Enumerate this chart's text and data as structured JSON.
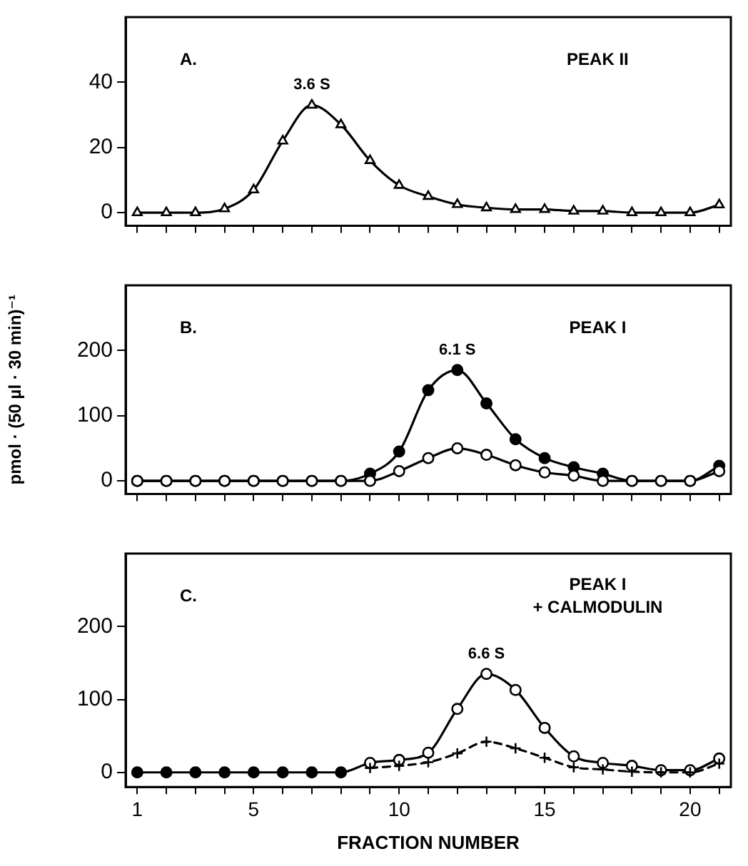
{
  "chart_data": [
    {
      "type": "line",
      "x": [
        1,
        2,
        3,
        4,
        5,
        6,
        7,
        8,
        9,
        10,
        11,
        12,
        13,
        14,
        15,
        16,
        17,
        18,
        19,
        20,
        21
      ],
      "series": [
        {
          "color": "#000000",
          "marker": "triangle",
          "colors": [
            "#ffffff",
            "#ffffff",
            "#ffffff",
            "#ffffff",
            "#ffffff",
            "#ffffff",
            "#ffffff",
            "#ffffff",
            "#ffffff",
            "#ffffff",
            "#ffffff",
            "#ffffff",
            "#ffffff",
            "#ffffff",
            "#ffffff",
            "#ffffff",
            "#ffffff",
            "#ffffff",
            "#ffffff",
            "#ffffff",
            "#ffffff"
          ],
          "values": [
            0,
            0,
            0,
            1.2,
            7,
            22,
            33,
            27,
            16,
            8.4,
            5,
            2.5,
            1.5,
            1,
            1,
            0.5,
            0.5,
            0,
            0,
            0,
            2.4
          ]
        }
      ],
      "annotations": [
        "A.",
        "PEAK II",
        {
          "text": "3.6 S",
          "x": 7,
          "y": 33
        }
      ],
      "xlim": [
        0.6,
        21.4
      ],
      "ylim": [
        -4,
        60
      ],
      "xticks": [
        1,
        {
          "value": 2,
          "label": null
        },
        {
          "value": 3,
          "label": null
        },
        {
          "value": 4,
          "label": null
        },
        5,
        {
          "value": 6,
          "label": null
        },
        {
          "value": 7,
          "label": null
        },
        {
          "value": 8,
          "label": null
        },
        {
          "value": 9,
          "label": null
        },
        10,
        {
          "value": 11,
          "label": null
        },
        {
          "value": 12,
          "label": null
        },
        {
          "value": 13,
          "label": null
        },
        {
          "value": 14,
          "label": null
        },
        15,
        {
          "value": 16,
          "label": null
        },
        {
          "value": 17,
          "label": null
        },
        {
          "value": 18,
          "label": null
        },
        {
          "value": 19,
          "label": null
        },
        20,
        {
          "value": 21,
          "label": null
        }
      ],
      "yticks": [
        0,
        20,
        40
      ],
      "tick_labels": "y",
      "line_style": "solid"
    },
    {
      "type": "line",
      "x": [
        1,
        2,
        3,
        4,
        5,
        6,
        7,
        8,
        9,
        10,
        11,
        12,
        13,
        14,
        15,
        16,
        17,
        18,
        19,
        20,
        21
      ],
      "ylabel": "pmol · (50 µl · 30 min)⁻¹",
      "series": [
        {
          "color": "#000000",
          "marker": "circle",
          "colors": [
            "#ffffff",
            "#ffffff",
            "#ffffff",
            "#ffffff",
            "#ffffff",
            "#ffffff",
            "#ffffff",
            "#ffffff",
            "#ffffff",
            "#ffffff",
            "#ffffff",
            "#ffffff",
            "#ffffff",
            "#ffffff",
            "#ffffff",
            "#ffffff",
            "#ffffff",
            "#ffffff",
            "#ffffff",
            "#ffffff",
            "#ffffff"
          ],
          "values": [
            0,
            0,
            0,
            0,
            0,
            0,
            0,
            0,
            0,
            15,
            35,
            50,
            40,
            24,
            13,
            8,
            0,
            0,
            0,
            0,
            15
          ]
        },
        {
          "color": "#000000",
          "marker": "circle",
          "colors": [
            "#000000",
            "#000000",
            "#000000",
            "#000000",
            "#000000",
            "#000000",
            "#000000",
            "#000000",
            "#000000",
            "#000000",
            "#000000",
            "#000000",
            "#000000",
            "#000000",
            "#000000",
            "#000000",
            "#000000",
            "#000000",
            "#000000",
            "#000000",
            "#000000"
          ],
          "values": [
            0,
            0,
            0,
            0,
            0,
            0,
            0,
            0,
            11,
            45,
            139,
            170,
            119,
            64,
            35,
            21,
            11,
            0,
            0,
            0,
            23
          ]
        }
      ],
      "annotations": [
        "B.",
        "PEAK I",
        {
          "text": "6.1 S",
          "x": 12,
          "y": 170
        }
      ],
      "xlim": [
        0.6,
        21.4
      ],
      "ylim": [
        -20,
        300
      ],
      "xticks": [
        1,
        {
          "value": 2,
          "label": null
        },
        {
          "value": 3,
          "label": null
        },
        {
          "value": 4,
          "label": null
        },
        5,
        {
          "value": 6,
          "label": null
        },
        {
          "value": 7,
          "label": null
        },
        {
          "value": 8,
          "label": null
        },
        {
          "value": 9,
          "label": null
        },
        10,
        {
          "value": 11,
          "label": null
        },
        {
          "value": 12,
          "label": null
        },
        {
          "value": 13,
          "label": null
        },
        {
          "value": 14,
          "label": null
        },
        15,
        {
          "value": 16,
          "label": null
        },
        {
          "value": 17,
          "label": null
        },
        {
          "value": 18,
          "label": null
        },
        {
          "value": 19,
          "label": null
        },
        20,
        {
          "value": 21,
          "label": null
        }
      ],
      "yticks": [
        0,
        100,
        200
      ],
      "tick_labels": "y",
      "line_style": "solid"
    },
    {
      "type": "line",
      "x": [
        1,
        2,
        3,
        4,
        5,
        6,
        7,
        8,
        9,
        10,
        11,
        12,
        13,
        14,
        15,
        16,
        17,
        18,
        19,
        20,
        21
      ],
      "xlabel": "FRACTION NUMBER",
      "series": [
        {
          "color": "#000000",
          "marker": "cross",
          "line_style": "dashed",
          "colors": [
            "#000000",
            "#000000",
            "#000000",
            "#000000",
            "#000000",
            "#000000",
            "#000000",
            "#000000",
            "#000000",
            "#000000",
            "#000000",
            "#000000",
            "#000000",
            "#000000",
            "#000000",
            "#000000",
            "#000000",
            "#000000",
            "#000000",
            "#000000",
            "#000000"
          ],
          "values": [
            null,
            null,
            null,
            null,
            null,
            null,
            null,
            null,
            6,
            9,
            14,
            26,
            42,
            33,
            20,
            7,
            4,
            1,
            0,
            0,
            12
          ]
        },
        {
          "color": "#000000",
          "marker": "circle",
          "colors": [
            "#000000",
            "#000000",
            "#000000",
            "#000000",
            "#000000",
            "#000000",
            "#000000",
            "#000000",
            "#ffffff",
            "#ffffff",
            "#ffffff",
            "#ffffff",
            "#ffffff",
            "#ffffff",
            "#ffffff",
            "#ffffff",
            "#ffffff",
            "#ffffff",
            "#ffffff",
            "#ffffff",
            "#ffffff"
          ],
          "values": [
            0,
            0,
            0,
            0,
            0,
            0,
            0,
            0,
            13,
            17,
            27,
            87,
            135,
            113,
            61,
            22,
            13,
            9,
            3,
            3,
            19
          ]
        }
      ],
      "annotations": [
        "C.",
        "PEAK I\n+ CALMODULIN",
        {
          "text": "6.6 S",
          "x": 13,
          "y": 135
        }
      ],
      "xlim": [
        0.6,
        21.4
      ],
      "ylim": [
        -20,
        300
      ],
      "xticks": [
        1,
        {
          "value": 2,
          "label": null
        },
        {
          "value": 3,
          "label": null
        },
        {
          "value": 4,
          "label": null
        },
        5,
        {
          "value": 6,
          "label": null
        },
        {
          "value": 7,
          "label": null
        },
        {
          "value": 8,
          "label": null
        },
        {
          "value": 9,
          "label": null
        },
        10,
        {
          "value": 11,
          "label": null
        },
        {
          "value": 12,
          "label": null
        },
        {
          "value": 13,
          "label": null
        },
        {
          "value": 14,
          "label": null
        },
        15,
        {
          "value": 16,
          "label": null
        },
        {
          "value": 17,
          "label": null
        },
        {
          "value": 18,
          "label": null
        },
        {
          "value": 19,
          "label": null
        },
        20,
        {
          "value": 21,
          "label": null
        }
      ],
      "yticks": [
        0,
        100,
        200
      ],
      "line_style": "solid"
    }
  ]
}
